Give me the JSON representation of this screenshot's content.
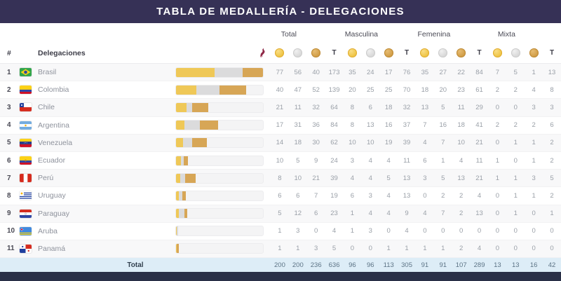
{
  "title": "TABLA DE MEDALLERÍA - DELEGACIONES",
  "colors": {
    "navy": "#363156",
    "dark_navy": "#2A3047",
    "gold": "#EFC857",
    "silver": "#DBDBDC",
    "bronze": "#D7A656",
    "footer_blue": "#DDEDF7",
    "torch": "#8E2746"
  },
  "groups": [
    {
      "label": "Total"
    },
    {
      "label": "Masculina"
    },
    {
      "label": "Femenina"
    },
    {
      "label": "Mixta"
    }
  ],
  "columns": {
    "pos": "#",
    "delegation": "Delegaciones",
    "total_abbr": "T",
    "medal_icons": [
      "gold-medal-icon",
      "silver-medal-icon",
      "bronze-medal-icon"
    ],
    "leading_icon": "torch-icon"
  },
  "rows": [
    {
      "pos": 1,
      "flag": "br",
      "name": "Brasil",
      "total": [
        77,
        56,
        40,
        173
      ],
      "masculina": [
        35,
        24,
        17,
        76
      ],
      "femenina": [
        35,
        27,
        22,
        84
      ],
      "mixta": [
        7,
        5,
        1,
        13
      ]
    },
    {
      "pos": 2,
      "flag": "co",
      "name": "Colombia",
      "total": [
        40,
        47,
        52,
        139
      ],
      "masculina": [
        20,
        25,
        25,
        70
      ],
      "femenina": [
        18,
        20,
        23,
        61
      ],
      "mixta": [
        2,
        2,
        4,
        8
      ]
    },
    {
      "pos": 3,
      "flag": "cl",
      "name": "Chile",
      "total": [
        21,
        11,
        32,
        64
      ],
      "masculina": [
        8,
        6,
        18,
        32
      ],
      "femenina": [
        13,
        5,
        11,
        29
      ],
      "mixta": [
        0,
        0,
        3,
        3
      ]
    },
    {
      "pos": 4,
      "flag": "ar",
      "name": "Argentina",
      "total": [
        17,
        31,
        36,
        84
      ],
      "masculina": [
        8,
        13,
        16,
        37
      ],
      "femenina": [
        7,
        16,
        18,
        41
      ],
      "mixta": [
        2,
        2,
        2,
        6
      ]
    },
    {
      "pos": 5,
      "flag": "ve",
      "name": "Venezuela",
      "total": [
        14,
        18,
        30,
        62
      ],
      "masculina": [
        10,
        10,
        19,
        39
      ],
      "femenina": [
        4,
        7,
        10,
        21
      ],
      "mixta": [
        0,
        1,
        1,
        2
      ]
    },
    {
      "pos": 6,
      "flag": "ec",
      "name": "Ecuador",
      "total": [
        10,
        5,
        9,
        24
      ],
      "masculina": [
        3,
        4,
        4,
        11
      ],
      "femenina": [
        6,
        1,
        4,
        11
      ],
      "mixta": [
        1,
        0,
        1,
        2
      ]
    },
    {
      "pos": 7,
      "flag": "pe",
      "name": "Perú",
      "total": [
        8,
        10,
        21,
        39
      ],
      "masculina": [
        4,
        4,
        5,
        13
      ],
      "femenina": [
        3,
        5,
        13,
        21
      ],
      "mixta": [
        1,
        1,
        3,
        5
      ]
    },
    {
      "pos": 8,
      "flag": "uy",
      "name": "Uruguay",
      "total": [
        6,
        6,
        7,
        19
      ],
      "masculina": [
        6,
        3,
        4,
        13
      ],
      "femenina": [
        0,
        2,
        2,
        4
      ],
      "mixta": [
        0,
        1,
        1,
        2
      ]
    },
    {
      "pos": 9,
      "flag": "py",
      "name": "Paraguay",
      "total": [
        5,
        12,
        6,
        23
      ],
      "masculina": [
        1,
        4,
        4,
        9
      ],
      "femenina": [
        4,
        7,
        2,
        13
      ],
      "mixta": [
        0,
        1,
        0,
        1
      ]
    },
    {
      "pos": 10,
      "flag": "aw",
      "name": "Aruba",
      "total": [
        1,
        3,
        0,
        4
      ],
      "masculina": [
        1,
        3,
        0,
        4
      ],
      "femenina": [
        0,
        0,
        0,
        0
      ],
      "mixta": [
        0,
        0,
        0,
        0
      ]
    },
    {
      "pos": 11,
      "flag": "pa",
      "name": "Panamá",
      "total": [
        1,
        1,
        3,
        5
      ],
      "masculina": [
        0,
        0,
        1,
        1
      ],
      "femenina": [
        1,
        1,
        2,
        4
      ],
      "mixta": [
        0,
        0,
        0,
        0
      ]
    }
  ],
  "footer": {
    "label": "Total",
    "total": [
      200,
      200,
      236,
      636
    ],
    "masculina": [
      96,
      96,
      113,
      305
    ],
    "femenina": [
      91,
      91,
      107,
      289
    ],
    "mixta": [
      13,
      13,
      16,
      42
    ]
  }
}
